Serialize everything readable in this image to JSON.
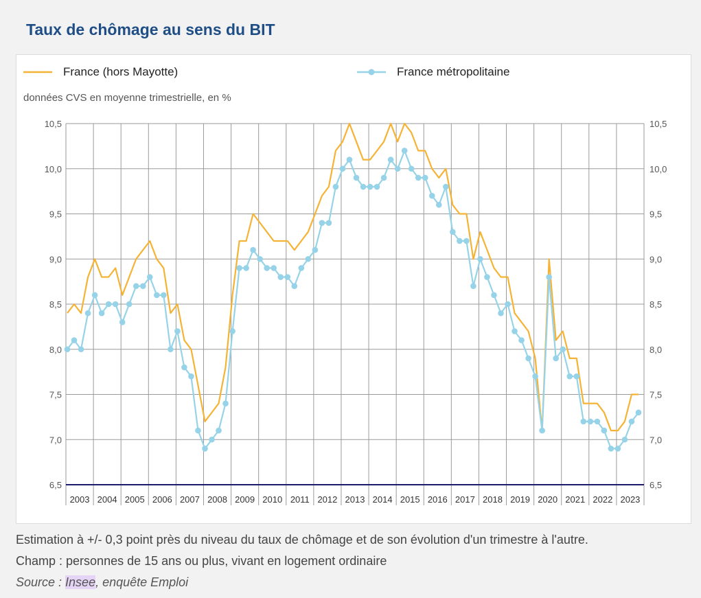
{
  "page": {
    "title": "Taux de chômage au sens du BIT"
  },
  "legend": {
    "france": "France (hors Mayotte)",
    "metro": "France métropolitaine"
  },
  "subtitle": "données CVS en moyenne trimestrielle, en %",
  "notes": {
    "line1": "Estimation à +/- 0,3 point près du niveau du taux de chômage et de son évolution d'un trimestre à l'autre.",
    "line2": "Champ : personnes de 15 ans ou plus, vivant en logement ordinaire",
    "source_prefix": "Source : ",
    "source_link": "Insee",
    "source_suffix": ", enquête Emploi"
  },
  "colors": {
    "france": "#f5b335",
    "metro": "#96d3e8",
    "title": "#1f4e86",
    "baseline": "#1a1a6e"
  },
  "chart_data": {
    "type": "line",
    "title": "Taux de chômage au sens du BIT",
    "subtitle": "données CVS en moyenne trimestrielle, en %",
    "xlabel": "",
    "ylabel": "",
    "ylim": [
      6.5,
      10.5
    ],
    "yticks": [
      "6,5",
      "7,0",
      "7,5",
      "8,0",
      "8,5",
      "9,0",
      "9,5",
      "10,0",
      "10,5"
    ],
    "years": [
      "2003",
      "2004",
      "2005",
      "2006",
      "2007",
      "2008",
      "2009",
      "2010",
      "2011",
      "2012",
      "2013",
      "2014",
      "2015",
      "2016",
      "2017",
      "2018",
      "2019",
      "2020",
      "2021",
      "2022",
      "2023"
    ],
    "grid": true,
    "legend_position": "top",
    "series": [
      {
        "name": "France (hors Mayotte)",
        "color": "#f5b335",
        "markers": false,
        "values": [
          8.4,
          8.5,
          8.4,
          8.8,
          9.0,
          8.8,
          8.8,
          8.9,
          8.6,
          8.8,
          9.0,
          9.1,
          9.2,
          9.0,
          8.9,
          8.4,
          8.5,
          8.1,
          8.0,
          7.6,
          7.2,
          7.3,
          7.4,
          7.8,
          8.6,
          9.2,
          9.2,
          9.5,
          9.4,
          9.3,
          9.2,
          9.2,
          9.2,
          9.1,
          9.2,
          9.3,
          9.5,
          9.7,
          9.8,
          10.2,
          10.3,
          10.5,
          10.3,
          10.1,
          10.1,
          10.2,
          10.3,
          10.5,
          10.3,
          10.5,
          10.4,
          10.2,
          10.2,
          10.0,
          9.9,
          10.0,
          9.6,
          9.5,
          9.5,
          9.0,
          9.3,
          9.1,
          8.9,
          8.8,
          8.8,
          8.4,
          8.3,
          8.2,
          7.9,
          7.1,
          9.0,
          8.1,
          8.2,
          7.9,
          7.9,
          7.4,
          7.4,
          7.4,
          7.3,
          7.1,
          7.1,
          7.2,
          7.5,
          7.5
        ]
      },
      {
        "name": "France métropolitaine",
        "color": "#96d3e8",
        "markers": true,
        "values": [
          8.0,
          8.1,
          8.0,
          8.4,
          8.6,
          8.4,
          8.5,
          8.5,
          8.3,
          8.5,
          8.7,
          8.7,
          8.8,
          8.6,
          8.6,
          8.0,
          8.2,
          7.8,
          7.7,
          7.1,
          6.9,
          7.0,
          7.1,
          7.4,
          8.2,
          8.9,
          8.9,
          9.1,
          9.0,
          8.9,
          8.9,
          8.8,
          8.8,
          8.7,
          8.9,
          9.0,
          9.1,
          9.4,
          9.4,
          9.8,
          10.0,
          10.1,
          9.9,
          9.8,
          9.8,
          9.8,
          9.9,
          10.1,
          10.0,
          10.2,
          10.0,
          9.9,
          9.9,
          9.7,
          9.6,
          9.8,
          9.3,
          9.2,
          9.2,
          8.7,
          9.0,
          8.8,
          8.6,
          8.4,
          8.5,
          8.2,
          8.1,
          7.9,
          7.7,
          7.1,
          8.8,
          7.9,
          8.0,
          7.7,
          7.7,
          7.2,
          7.2,
          7.2,
          7.1,
          6.9,
          6.9,
          7.0,
          7.2,
          7.3
        ]
      }
    ]
  }
}
